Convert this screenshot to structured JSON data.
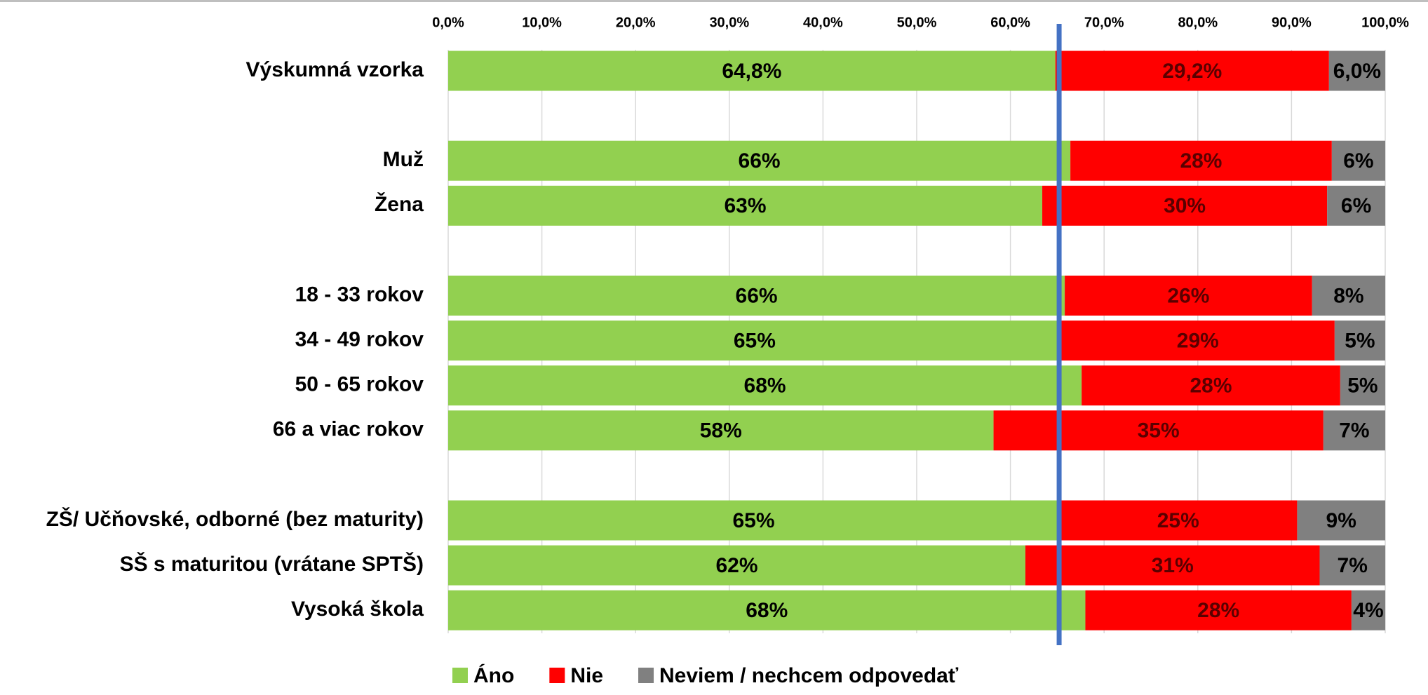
{
  "chart_data": {
    "type": "stacked_barh",
    "categories": [
      "Výskumná vzorka",
      null,
      "Muž",
      "Žena",
      null,
      "18 - 33 rokov",
      "34 - 49 rokov",
      "50 - 65 rokov",
      "66 a viac rokov",
      null,
      "ZŠ/ Učňovské, odborné (bez maturity)",
      "SŠ s maturitou (vrátane SPTŠ)",
      "Vysoká škola"
    ],
    "series": [
      {
        "name": "Áno",
        "color": "#92d050",
        "label_color": "#000000",
        "values": [
          64.8,
          null,
          66.4,
          63.4,
          null,
          65.8,
          65.4,
          67.6,
          58.2,
          null,
          65.2,
          61.6,
          68.0
        ],
        "value_labels": [
          "64,8%",
          null,
          "66%",
          "63%",
          null,
          "66%",
          "65%",
          "68%",
          "58%",
          null,
          "65%",
          "62%",
          "68%"
        ]
      },
      {
        "name": "Nie",
        "color": "#ff0000",
        "label_color": "#5a0000",
        "values": [
          29.2,
          null,
          27.9,
          30.4,
          null,
          26.4,
          29.2,
          27.6,
          35.2,
          null,
          25.4,
          31.4,
          28.4
        ],
        "value_labels": [
          "29,2%",
          null,
          "28%",
          "30%",
          null,
          "26%",
          "29%",
          "28%",
          "35%",
          null,
          "25%",
          "31%",
          "28%"
        ]
      },
      {
        "name": "Neviem / nechcem odpovedať",
        "color": "#808080",
        "label_color": "#000000",
        "values": [
          6.0,
          null,
          5.7,
          6.2,
          null,
          7.8,
          5.4,
          4.8,
          6.6,
          null,
          9.4,
          7.0,
          3.6
        ],
        "value_labels": [
          "6,0%",
          null,
          "6%",
          "6%",
          null,
          "8%",
          "5%",
          "5%",
          "7%",
          null,
          "9%",
          "7%",
          "4%"
        ]
      }
    ],
    "xlim": [
      0,
      100
    ],
    "xticks": [
      {
        "value": 0,
        "label": "0,0%"
      },
      {
        "value": 10,
        "label": "10,0%"
      },
      {
        "value": 20,
        "label": "20,0%"
      },
      {
        "value": 30,
        "label": "30,0%"
      },
      {
        "value": 40,
        "label": "40,0%"
      },
      {
        "value": 50,
        "label": "50,0%"
      },
      {
        "value": 60,
        "label": "60,0%"
      },
      {
        "value": 70,
        "label": "70,0%"
      },
      {
        "value": 80,
        "label": "80,0%"
      },
      {
        "value": 90,
        "label": "90,0%"
      },
      {
        "value": 100,
        "label": "100,0%"
      }
    ],
    "grid": true,
    "reference_line": {
      "value": 65.2,
      "color": "#4472c4"
    },
    "legend": "bottom"
  }
}
